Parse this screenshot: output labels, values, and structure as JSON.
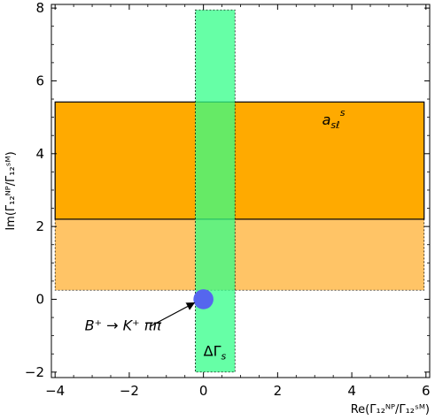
{
  "chart_data": {
    "type": "region",
    "xlabel": "Re(Γ₁₂ᴺᴾ/Γ₁₂ˢᴹ)",
    "ylabel": "Im(Γ₁₂ᴺᴾ/Γ₁₂ˢᴹ)",
    "xlim": [
      -4.1,
      6.1
    ],
    "ylim": [
      -2.15,
      8.1
    ],
    "x_ticks": [
      -4,
      -2,
      0,
      2,
      4,
      6
    ],
    "y_ticks": [
      -2,
      0,
      2,
      4,
      6,
      8
    ],
    "x_tick_labels": [
      "−4",
      "−2",
      "0",
      "2",
      "4",
      "6"
    ],
    "y_tick_labels": [
      "−2",
      "0",
      "2",
      "4",
      "6",
      "8"
    ],
    "grid": false,
    "regions": [
      {
        "label": "",
        "type": "rect",
        "x": [
          -4.0,
          5.95
        ],
        "y": [
          0.25,
          2.2
        ],
        "color": "#ffc466",
        "edge": "dashed"
      },
      {
        "label": "a_sℓ^s",
        "type": "rect",
        "x": [
          -4.0,
          5.95
        ],
        "y": [
          2.2,
          5.42
        ],
        "color": "#ffaa00",
        "edge": "solid"
      },
      {
        "label": "ΔΓ_s",
        "type": "rect",
        "x": [
          -0.22,
          0.85
        ],
        "y": [
          -2.0,
          7.95
        ],
        "color": "#33ff88",
        "opacity": 0.75,
        "edge": "dashed"
      },
      {
        "label": "B⁺ → K⁺ ππ",
        "type": "circle",
        "center": [
          0.0,
          0.0
        ],
        "radius": 0.27,
        "color": "#5566ee"
      }
    ],
    "annotations": [
      {
        "name": "asl",
        "text": "a",
        "sub": "sℓ",
        "sup": "s",
        "x": 3.2,
        "y": 4.8
      },
      {
        "name": "dgamma",
        "text": "ΔΓ",
        "sub": "s",
        "x": 0.0,
        "y": -1.55
      },
      {
        "name": "bkpipi",
        "text": "B⁺ → K⁺ ππ",
        "x": -3.2,
        "y": -0.85,
        "arrow_to": [
          -0.25,
          -0.1
        ]
      }
    ]
  }
}
